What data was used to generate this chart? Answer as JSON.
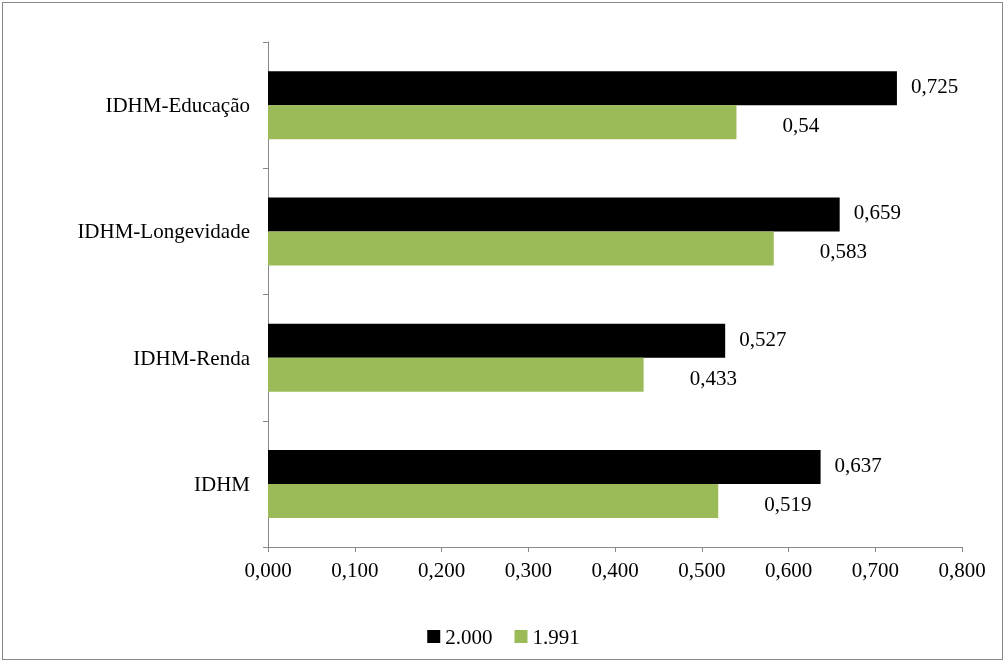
{
  "chart_data": {
    "type": "bar",
    "orientation": "horizontal",
    "categories": [
      "IDHM-Educação",
      "IDHM-Longevidade",
      "IDHM-Renda",
      "IDHM"
    ],
    "series": [
      {
        "name": "2.000",
        "color": "#000000",
        "values": [
          0.725,
          0.659,
          0.527,
          0.637
        ],
        "value_labels": [
          "0,725",
          "0,659",
          "0,527",
          "0,637"
        ]
      },
      {
        "name": "1.991",
        "color": "#9bbb59",
        "values": [
          0.54,
          0.583,
          0.433,
          0.519
        ],
        "value_labels": [
          "0,54",
          "0,583",
          "0,433",
          "0,519"
        ]
      }
    ],
    "xlim": [
      0,
      0.8
    ],
    "xticks": [
      {
        "value": 0,
        "label": "0,000"
      },
      {
        "value": 0.1,
        "label": "0,100"
      },
      {
        "value": 0.2,
        "label": "0,200"
      },
      {
        "value": 0.3,
        "label": "0,300"
      },
      {
        "value": 0.4,
        "label": "0,400"
      },
      {
        "value": 0.5,
        "label": "0,500"
      },
      {
        "value": 0.6,
        "label": "0,600"
      },
      {
        "value": 0.7,
        "label": "0,700"
      },
      {
        "value": 0.8,
        "label": "0,800"
      }
    ],
    "grid": false,
    "legend": "bottom"
  }
}
